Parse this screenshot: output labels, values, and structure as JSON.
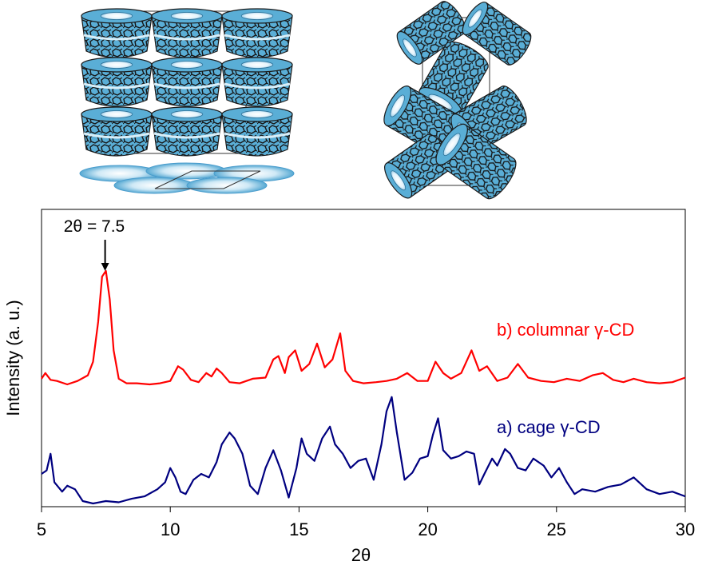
{
  "chart_data": {
    "type": "line",
    "xlabel": "2θ",
    "ylabel": "Intensity (a. u.)",
    "xlim": [
      5,
      30
    ],
    "xticks": [
      "5",
      "10",
      "15",
      "20",
      "25",
      "30"
    ],
    "grid": false,
    "annotation": {
      "text": "2θ = 7.5",
      "x": 7.5
    },
    "series": [
      {
        "name": "b) columnar γ-CD",
        "color": "#ff0000",
        "x": [
          5.0,
          5.15,
          5.35,
          5.6,
          6.0,
          6.4,
          6.8,
          7.0,
          7.2,
          7.35,
          7.5,
          7.65,
          7.8,
          8.0,
          8.3,
          8.7,
          9.2,
          9.6,
          10.0,
          10.3,
          10.5,
          10.8,
          11.1,
          11.4,
          11.6,
          11.8,
          12.0,
          12.3,
          12.7,
          13.2,
          13.7,
          14.0,
          14.2,
          14.45,
          14.6,
          14.85,
          15.1,
          15.4,
          15.7,
          16.0,
          16.3,
          16.6,
          16.8,
          17.1,
          17.5,
          18.0,
          18.4,
          18.8,
          19.2,
          19.6,
          20.0,
          20.3,
          20.6,
          20.9,
          21.3,
          21.7,
          22.0,
          22.3,
          22.7,
          23.1,
          23.5,
          23.9,
          24.4,
          24.9,
          25.4,
          25.9,
          26.4,
          26.8,
          27.2,
          27.6,
          28.0,
          28.5,
          29.0,
          29.5,
          30.0
        ],
        "y": [
          0.05,
          0.1,
          0.04,
          0.03,
          0.0,
          0.03,
          0.08,
          0.2,
          0.55,
          0.95,
          1.0,
          0.75,
          0.3,
          0.05,
          0.01,
          0.01,
          0.0,
          0.01,
          0.03,
          0.16,
          0.13,
          0.04,
          0.02,
          0.1,
          0.07,
          0.14,
          0.1,
          0.02,
          0.01,
          0.05,
          0.06,
          0.22,
          0.25,
          0.1,
          0.24,
          0.3,
          0.12,
          0.18,
          0.36,
          0.15,
          0.22,
          0.45,
          0.12,
          0.03,
          0.01,
          0.02,
          0.03,
          0.05,
          0.1,
          0.03,
          0.03,
          0.2,
          0.1,
          0.05,
          0.1,
          0.3,
          0.12,
          0.16,
          0.03,
          0.06,
          0.18,
          0.06,
          0.03,
          0.02,
          0.05,
          0.03,
          0.08,
          0.1,
          0.04,
          0.02,
          0.05,
          0.02,
          0.01,
          0.02,
          0.06
        ]
      },
      {
        "name": "a) cage γ-CD",
        "color": "#000080",
        "x": [
          5.0,
          5.2,
          5.35,
          5.5,
          5.8,
          6.0,
          6.3,
          6.6,
          7.0,
          7.5,
          8.0,
          8.5,
          9.0,
          9.5,
          9.8,
          10.0,
          10.2,
          10.4,
          10.6,
          10.9,
          11.2,
          11.5,
          11.8,
          12.0,
          12.3,
          12.5,
          12.8,
          13.1,
          13.4,
          13.7,
          14.0,
          14.3,
          14.6,
          14.9,
          15.1,
          15.3,
          15.6,
          15.9,
          16.2,
          16.4,
          16.7,
          17.0,
          17.3,
          17.6,
          17.9,
          18.2,
          18.4,
          18.6,
          18.8,
          19.1,
          19.4,
          19.7,
          20.0,
          20.2,
          20.4,
          20.6,
          20.9,
          21.2,
          21.5,
          21.8,
          22.0,
          22.2,
          22.5,
          22.7,
          23.0,
          23.2,
          23.5,
          23.8,
          24.1,
          24.5,
          24.8,
          25.1,
          25.4,
          25.7,
          26.0,
          26.5,
          27.0,
          27.5,
          28.0,
          28.5,
          29.0,
          29.5,
          30.0
        ],
        "y": [
          0.25,
          0.28,
          0.42,
          0.18,
          0.1,
          0.15,
          0.12,
          0.02,
          0.0,
          0.02,
          0.01,
          0.04,
          0.06,
          0.12,
          0.18,
          0.3,
          0.22,
          0.1,
          0.08,
          0.2,
          0.25,
          0.22,
          0.35,
          0.5,
          0.6,
          0.55,
          0.42,
          0.15,
          0.08,
          0.3,
          0.45,
          0.28,
          0.05,
          0.3,
          0.55,
          0.42,
          0.36,
          0.55,
          0.65,
          0.5,
          0.42,
          0.3,
          0.36,
          0.38,
          0.2,
          0.5,
          0.78,
          0.9,
          0.6,
          0.2,
          0.26,
          0.38,
          0.4,
          0.58,
          0.72,
          0.45,
          0.38,
          0.4,
          0.44,
          0.42,
          0.16,
          0.25,
          0.38,
          0.32,
          0.46,
          0.42,
          0.3,
          0.28,
          0.38,
          0.32,
          0.22,
          0.3,
          0.18,
          0.08,
          0.12,
          0.1,
          0.14,
          0.16,
          0.22,
          0.12,
          0.08,
          0.1,
          0.06
        ]
      }
    ]
  },
  "colors": {
    "crystal_fill": "#5aaed6",
    "crystal_outline": "#1a1a1a",
    "axis": "#000000"
  }
}
